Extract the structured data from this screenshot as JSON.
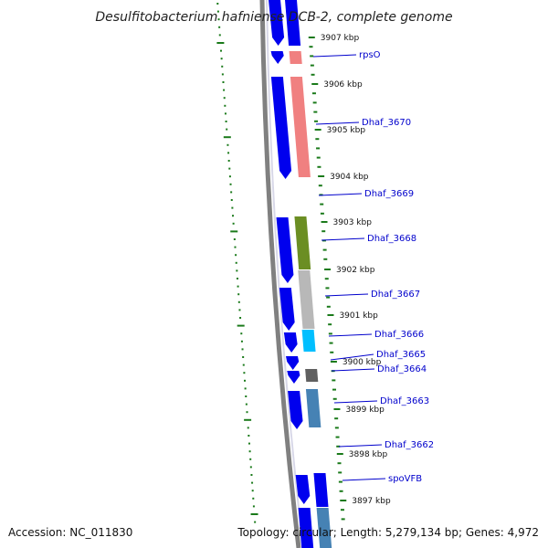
{
  "title": "Desulfitobacterium hafniense DCB-2, complete genome",
  "footer": {
    "accession": "Accession: NC_011830",
    "topology": "Topology: circular; Length: 5,279,134 bp; Genes: 4,972"
  },
  "kbp_labels": [
    "3907 kbp",
    "3906 kbp",
    "3905 kbp",
    "3904 kbp",
    "3903 kbp",
    "3902 kbp",
    "3901 kbp",
    "3900 kbp",
    "3899 kbp",
    "3898 kbp",
    "3897 kbp"
  ],
  "gene_labels": [
    "rpsO",
    "Dhaf_3670",
    "Dhaf_3669",
    "Dhaf_3668",
    "Dhaf_3667",
    "Dhaf_3666",
    "Dhaf_3665",
    "Dhaf_3664",
    "Dhaf_3663",
    "Dhaf_3662",
    "spoVFB"
  ],
  "colors": {
    "cds_blue": "#0000ee",
    "salmon": "#f08080",
    "olive": "#6b8e23",
    "silver": "#b8b8b8",
    "cyan": "#00bfff",
    "dark_gray": "#606060",
    "steel_blue": "#4682b4",
    "gc_skew_green": "#1a7a1a",
    "backbone_gray": "#808080",
    "label_link": "#0000cc"
  },
  "feature_tracks": [
    {
      "name": "cds-track-outer",
      "color": "cds_blue"
    },
    {
      "name": "feature-track-inner",
      "color": "salmon"
    }
  ]
}
